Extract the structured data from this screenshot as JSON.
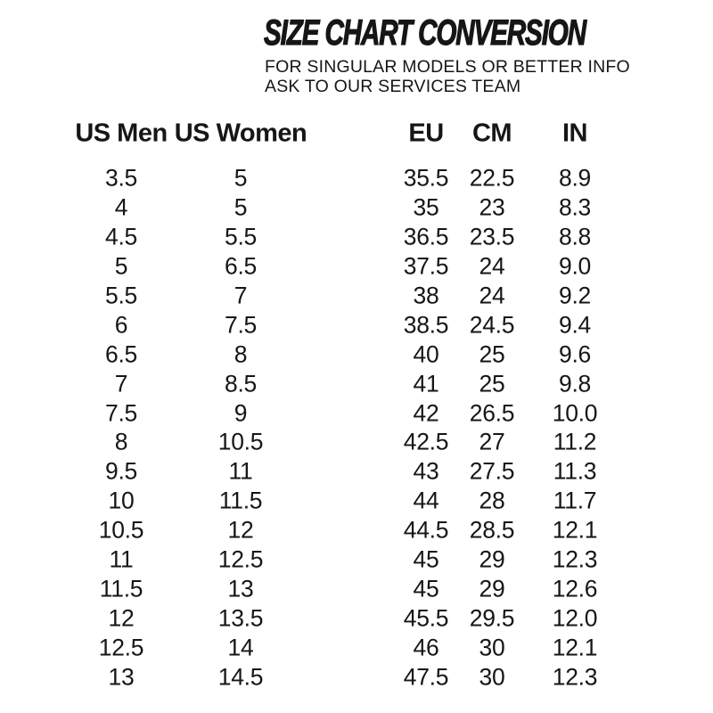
{
  "header": {
    "title": "SIZE CHART CONVERSION",
    "subtitle_line1": "FOR SINGULAR MODELS OR BETTER INFO",
    "subtitle_line2": "ASK TO OUR SERVICES TEAM"
  },
  "colors": {
    "background": "#ffffff",
    "text": "#161616"
  },
  "chart_data": {
    "type": "table",
    "title": "SIZE CHART CONVERSION",
    "columns": [
      "US Men",
      "US Women",
      "EU",
      "CM",
      "IN"
    ],
    "rows": [
      [
        "3.5",
        "5",
        "35.5",
        "22.5",
        "8.9"
      ],
      [
        "4",
        "5",
        "35",
        "23",
        "8.3"
      ],
      [
        "4.5",
        "5.5",
        "36.5",
        "23.5",
        "8.8"
      ],
      [
        "5",
        "6.5",
        "37.5",
        "24",
        "9.0"
      ],
      [
        "5.5",
        "7",
        "38",
        "24",
        "9.2"
      ],
      [
        "6",
        "7.5",
        "38.5",
        "24.5",
        "9.4"
      ],
      [
        "6.5",
        "8",
        "40",
        "25",
        "9.6"
      ],
      [
        "7",
        "8.5",
        "41",
        "25",
        "9.8"
      ],
      [
        "7.5",
        "9",
        "42",
        "26.5",
        "10.0"
      ],
      [
        "8",
        "10.5",
        "42.5",
        "27",
        "11.2"
      ],
      [
        "9.5",
        "11",
        "43",
        "27.5",
        "11.3"
      ],
      [
        "10",
        "11.5",
        "44",
        "28",
        "11.7"
      ],
      [
        "10.5",
        "12",
        "44.5",
        "28.5",
        "12.1"
      ],
      [
        "11",
        "12.5",
        "45",
        "29",
        "12.3"
      ],
      [
        "11.5",
        "13",
        "45",
        "29",
        "12.6"
      ],
      [
        "12",
        "13.5",
        "45.5",
        "29.5",
        "12.0"
      ],
      [
        "12.5",
        "14",
        "46",
        "30",
        "12.1"
      ],
      [
        "13",
        "14.5",
        "47.5",
        "30",
        "12.3"
      ]
    ]
  }
}
